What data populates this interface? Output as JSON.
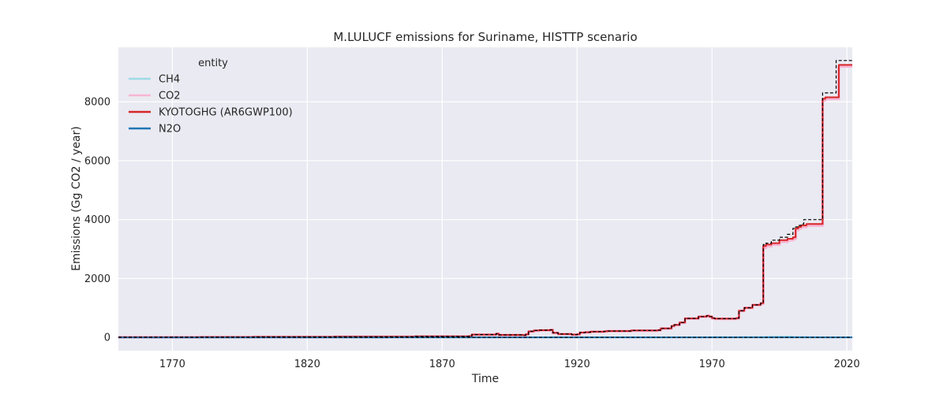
{
  "chart_data": {
    "type": "line",
    "title": "M.LULUCF emissions for Suriname, HISTTP scenario",
    "xlabel": "Time",
    "ylabel": "Emissions (Gg CO2 / year)",
    "xlim": [
      1750,
      2022
    ],
    "ylim": [
      -450,
      9850
    ],
    "x_ticks": [
      1770,
      1820,
      1870,
      1920,
      1970,
      2020
    ],
    "y_ticks": [
      0,
      2000,
      4000,
      6000,
      8000
    ],
    "grid": true,
    "background": "#eaeaf2",
    "legend": {
      "title": "entity",
      "placement": "top-left",
      "entries": [
        "CH4",
        "CO2",
        "KYOTOGHG (AR6GWP100)",
        "N2O"
      ]
    },
    "series": [
      {
        "name": "CH4",
        "color": "#9edae5",
        "x": [
          1750,
          1850,
          1880,
          1890,
          1900,
          1910,
          1920,
          1950,
          1970,
          1980,
          1990,
          1995,
          2000,
          2005,
          2010,
          2022
        ],
        "y": [
          0,
          0,
          2,
          4,
          3,
          5,
          4,
          6,
          10,
          14,
          20,
          25,
          15,
          8,
          5,
          5
        ]
      },
      {
        "name": "CO2",
        "color": "#f7b6d2",
        "x": [
          1750,
          1780,
          1800,
          1830,
          1860,
          1880,
          1881,
          1890,
          1891,
          1900,
          1901,
          1902,
          1904,
          1906,
          1910,
          1911,
          1913,
          1918,
          1920,
          1921,
          1923,
          1925,
          1930,
          1931,
          1940,
          1950,
          1951,
          1955,
          1956,
          1958,
          1960,
          1965,
          1968,
          1969,
          1970,
          1971,
          1975,
          1979,
          1980,
          1982,
          1985,
          1988,
          1989,
          1990,
          1992,
          1995,
          1998,
          2000,
          2001,
          2002,
          2003,
          2005,
          2008,
          2010,
          2011,
          2012,
          2015,
          2016,
          2017,
          2022
        ],
        "y": [
          5,
          10,
          15,
          20,
          30,
          40,
          90,
          120,
          80,
          70,
          100,
          200,
          230,
          240,
          250,
          150,
          110,
          90,
          100,
          160,
          170,
          190,
          200,
          210,
          230,
          240,
          300,
          380,
          420,
          500,
          640,
          700,
          730,
          700,
          650,
          630,
          630,
          650,
          900,
          1000,
          1100,
          1150,
          3050,
          3100,
          3150,
          3250,
          3300,
          3350,
          3650,
          3700,
          3750,
          3800,
          3800,
          3800,
          8050,
          8100,
          8100,
          8100,
          9200,
          9200
        ]
      },
      {
        "name": "KYOTOGHG (AR6GWP100)",
        "color": "#d62728",
        "x": [
          1750,
          1780,
          1800,
          1830,
          1860,
          1880,
          1881,
          1890,
          1891,
          1900,
          1901,
          1902,
          1904,
          1906,
          1910,
          1911,
          1913,
          1918,
          1920,
          1921,
          1923,
          1925,
          1930,
          1931,
          1940,
          1950,
          1951,
          1955,
          1956,
          1958,
          1960,
          1965,
          1968,
          1969,
          1970,
          1971,
          1975,
          1979,
          1980,
          1982,
          1985,
          1988,
          1989,
          1990,
          1992,
          1995,
          1998,
          2000,
          2001,
          2002,
          2003,
          2005,
          2008,
          2010,
          2011,
          2012,
          2015,
          2016,
          2017,
          2022
        ],
        "y": [
          8,
          13,
          18,
          24,
          34,
          45,
          95,
          125,
          85,
          75,
          105,
          205,
          235,
          245,
          255,
          155,
          115,
          95,
          105,
          165,
          175,
          195,
          205,
          215,
          235,
          245,
          305,
          385,
          425,
          505,
          645,
          705,
          735,
          705,
          655,
          635,
          635,
          655,
          905,
          1005,
          1105,
          1160,
          3100,
          3150,
          3200,
          3300,
          3350,
          3400,
          3700,
          3750,
          3800,
          3850,
          3850,
          3850,
          8100,
          8150,
          8150,
          8150,
          9250,
          9250
        ]
      },
      {
        "name": "N2O",
        "color": "#1f77b4",
        "x": [
          1750,
          1850,
          1900,
          1950,
          2000,
          2022
        ],
        "y": [
          0,
          1,
          1,
          2,
          3,
          3
        ]
      }
    ],
    "overlays": [
      {
        "style": "dashed",
        "color": "#000000",
        "x": [
          1750,
          1780,
          1800,
          1830,
          1860,
          1880,
          1881,
          1890,
          1891,
          1900,
          1901,
          1902,
          1904,
          1906,
          1910,
          1911,
          1913,
          1918,
          1920,
          1921,
          1923,
          1925,
          1930,
          1931,
          1940,
          1950,
          1951,
          1955,
          1956,
          1958,
          1960,
          1965,
          1968,
          1969,
          1970,
          1971,
          1975,
          1979,
          1980,
          1982,
          1985,
          1988,
          1989,
          1990,
          1992,
          1995,
          1998,
          2000,
          2001,
          2002,
          2003,
          2004,
          2010,
          2011,
          2015,
          2016,
          2022
        ],
        "y": [
          8,
          13,
          18,
          24,
          34,
          45,
          95,
          125,
          85,
          75,
          105,
          205,
          235,
          245,
          255,
          155,
          115,
          95,
          105,
          165,
          175,
          195,
          205,
          215,
          235,
          245,
          305,
          385,
          425,
          505,
          645,
          705,
          735,
          705,
          655,
          635,
          635,
          655,
          905,
          1005,
          1105,
          1160,
          3150,
          3200,
          3300,
          3400,
          3500,
          3700,
          3750,
          3800,
          3850,
          4000,
          4000,
          8300,
          8300,
          9400,
          9400
        ]
      },
      {
        "style": "dashed",
        "color": "#000000",
        "x": [
          1750,
          2022
        ],
        "y": [
          0,
          0
        ]
      }
    ]
  }
}
